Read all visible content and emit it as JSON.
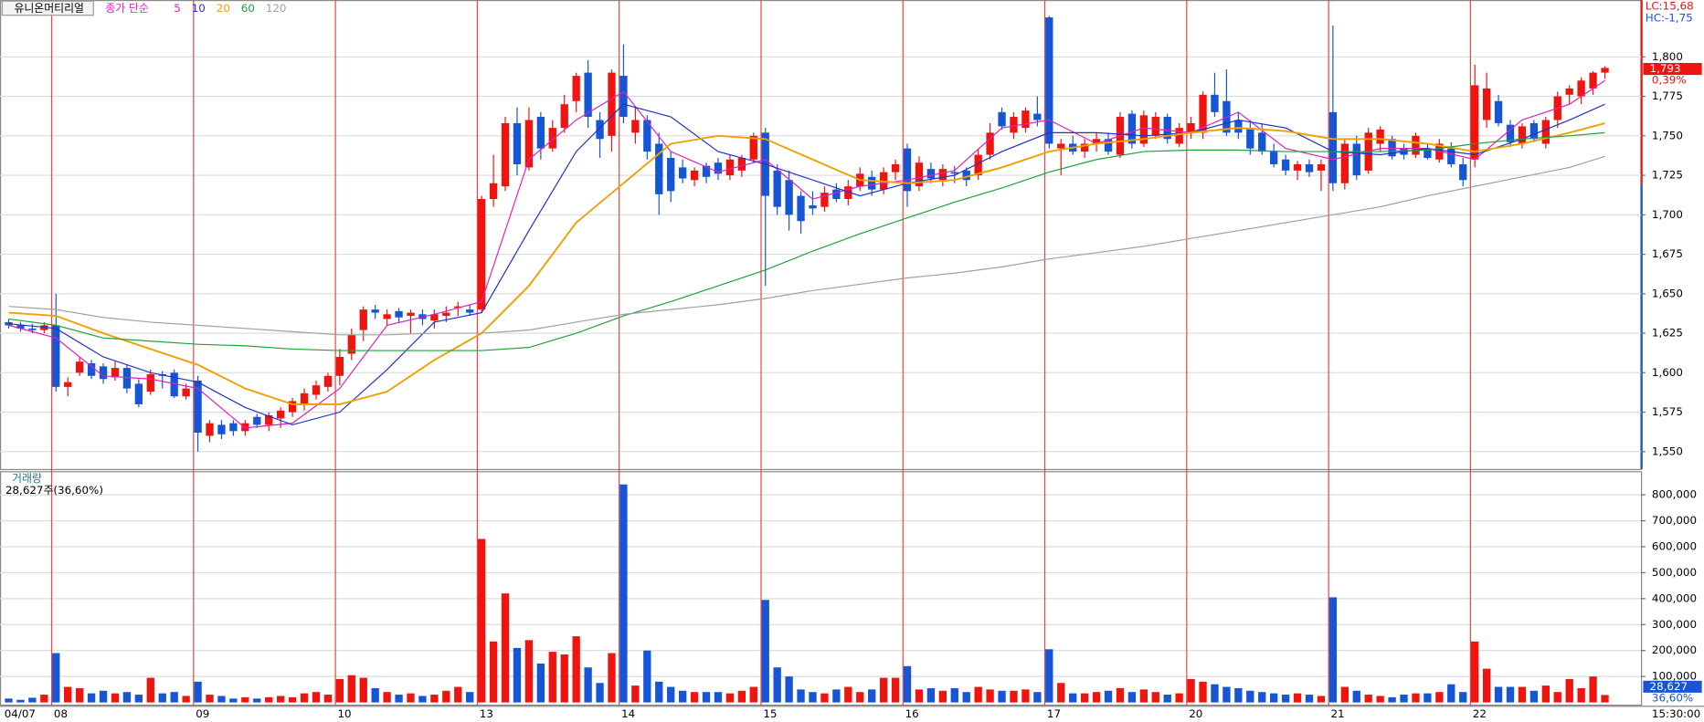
{
  "chart_data": {
    "type": "candlestick",
    "stock_name": "유니온머티리얼",
    "ma_title": "종가 단순",
    "categories": [
      "04/07",
      null,
      null,
      null,
      "08",
      null,
      null,
      null,
      null,
      null,
      null,
      null,
      null,
      null,
      null,
      null,
      "09",
      null,
      null,
      null,
      null,
      null,
      null,
      null,
      null,
      null,
      null,
      null,
      "10",
      null,
      null,
      null,
      null,
      null,
      null,
      null,
      null,
      null,
      null,
      null,
      "13",
      null,
      null,
      null,
      null,
      null,
      null,
      null,
      null,
      null,
      null,
      null,
      "14",
      null,
      null,
      null,
      null,
      null,
      null,
      null,
      null,
      null,
      null,
      null,
      "15",
      null,
      null,
      null,
      null,
      null,
      null,
      null,
      null,
      null,
      null,
      null,
      "16",
      null,
      null,
      null,
      null,
      null,
      null,
      null,
      null,
      null,
      null,
      null,
      "17",
      null,
      null,
      null,
      null,
      null,
      null,
      null,
      null,
      null,
      null,
      null,
      "20",
      null,
      null,
      null,
      null,
      null,
      null,
      null,
      null,
      null,
      null,
      null,
      "21",
      null,
      null,
      null,
      null,
      null,
      null,
      null,
      null,
      null,
      null,
      null,
      "22",
      null,
      null,
      null,
      null,
      null,
      null,
      null,
      null,
      null,
      null,
      null
    ],
    "ohlc": [
      [
        1632,
        1634,
        1628,
        1630
      ],
      [
        1630,
        1632,
        1626,
        1628
      ],
      [
        1628,
        1631,
        1625,
        1627
      ],
      [
        1627,
        1632,
        1625,
        1630
      ],
      [
        1630,
        1650,
        1588,
        1591
      ],
      [
        1591,
        1597,
        1585,
        1594
      ],
      [
        1600,
        1610,
        1598,
        1607
      ],
      [
        1606,
        1608,
        1596,
        1598
      ],
      [
        1604,
        1606,
        1593,
        1596
      ],
      [
        1597,
        1607,
        1595,
        1603
      ],
      [
        1603,
        1605,
        1587,
        1590
      ],
      [
        1593,
        1596,
        1578,
        1580
      ],
      [
        1588,
        1602,
        1586,
        1599
      ],
      [
        1599,
        1601,
        1590,
        1598
      ],
      [
        1600,
        1602,
        1584,
        1585
      ],
      [
        1585,
        1593,
        1583,
        1590
      ],
      [
        1595,
        1598,
        1550,
        1562
      ],
      [
        1560,
        1570,
        1556,
        1568
      ],
      [
        1567,
        1570,
        1558,
        1561
      ],
      [
        1568,
        1570,
        1560,
        1563
      ],
      [
        1563,
        1570,
        1560,
        1568
      ],
      [
        1572,
        1574,
        1565,
        1567
      ],
      [
        1567,
        1575,
        1563,
        1573
      ],
      [
        1571,
        1578,
        1565,
        1576
      ],
      [
        1575,
        1584,
        1572,
        1582
      ],
      [
        1580,
        1590,
        1576,
        1587
      ],
      [
        1586,
        1595,
        1583,
        1592
      ],
      [
        1591,
        1600,
        1588,
        1598
      ],
      [
        1598,
        1615,
        1592,
        1610
      ],
      [
        1612,
        1628,
        1608,
        1624
      ],
      [
        1627,
        1642,
        1620,
        1640
      ],
      [
        1640,
        1643,
        1634,
        1638
      ],
      [
        1634,
        1640,
        1630,
        1637
      ],
      [
        1639,
        1641,
        1632,
        1635
      ],
      [
        1636,
        1640,
        1625,
        1638
      ],
      [
        1637,
        1640,
        1630,
        1634
      ],
      [
        1633,
        1640,
        1628,
        1637
      ],
      [
        1636,
        1642,
        1632,
        1638
      ],
      [
        1641,
        1645,
        1636,
        1642
      ],
      [
        1640,
        1643,
        1636,
        1638
      ],
      [
        1640,
        1712,
        1638,
        1710
      ],
      [
        1710,
        1738,
        1705,
        1720
      ],
      [
        1718,
        1762,
        1715,
        1758
      ],
      [
        1758,
        1768,
        1725,
        1732
      ],
      [
        1730,
        1768,
        1728,
        1760
      ],
      [
        1762,
        1765,
        1735,
        1742
      ],
      [
        1742,
        1760,
        1740,
        1755
      ],
      [
        1755,
        1776,
        1752,
        1770
      ],
      [
        1772,
        1790,
        1765,
        1788
      ],
      [
        1790,
        1798,
        1755,
        1762
      ],
      [
        1760,
        1765,
        1736,
        1748
      ],
      [
        1750,
        1792,
        1740,
        1790
      ],
      [
        1788,
        1808,
        1758,
        1762
      ],
      [
        1752,
        1768,
        1745,
        1760
      ],
      [
        1760,
        1763,
        1735,
        1740
      ],
      [
        1745,
        1752,
        1700,
        1713
      ],
      [
        1736,
        1740,
        1708,
        1715
      ],
      [
        1730,
        1735,
        1720,
        1723
      ],
      [
        1722,
        1730,
        1718,
        1728
      ],
      [
        1731,
        1733,
        1720,
        1724
      ],
      [
        1733,
        1736,
        1722,
        1726
      ],
      [
        1725,
        1738,
        1722,
        1735
      ],
      [
        1728,
        1738,
        1724,
        1736
      ],
      [
        1735,
        1752,
        1733,
        1750
      ],
      [
        1752,
        1755,
        1655,
        1712
      ],
      [
        1728,
        1732,
        1700,
        1705
      ],
      [
        1722,
        1728,
        1690,
        1700
      ],
      [
        1712,
        1715,
        1688,
        1696
      ],
      [
        1706,
        1715,
        1700,
        1704
      ],
      [
        1705,
        1718,
        1702,
        1714
      ],
      [
        1716,
        1720,
        1708,
        1710
      ],
      [
        1710,
        1722,
        1706,
        1718
      ],
      [
        1718,
        1730,
        1715,
        1726
      ],
      [
        1724,
        1728,
        1712,
        1716
      ],
      [
        1716,
        1730,
        1713,
        1727
      ],
      [
        1727,
        1735,
        1722,
        1732
      ],
      [
        1742,
        1745,
        1705,
        1715
      ],
      [
        1718,
        1737,
        1715,
        1733
      ],
      [
        1729,
        1733,
        1720,
        1723
      ],
      [
        1722,
        1732,
        1718,
        1729
      ],
      [
        1727,
        1731,
        1720,
        1726
      ],
      [
        1728,
        1730,
        1718,
        1722
      ],
      [
        1725,
        1742,
        1722,
        1738
      ],
      [
        1738,
        1758,
        1735,
        1752
      ],
      [
        1765,
        1768,
        1754,
        1756
      ],
      [
        1752,
        1765,
        1748,
        1762
      ],
      [
        1755,
        1768,
        1752,
        1766
      ],
      [
        1764,
        1775,
        1756,
        1760
      ],
      [
        1825,
        1826,
        1742,
        1745
      ],
      [
        1742,
        1748,
        1725,
        1745
      ],
      [
        1745,
        1750,
        1738,
        1740
      ],
      [
        1740,
        1748,
        1736,
        1745
      ],
      [
        1745,
        1752,
        1740,
        1748
      ],
      [
        1748,
        1752,
        1738,
        1740
      ],
      [
        1738,
        1765,
        1736,
        1762
      ],
      [
        1764,
        1766,
        1742,
        1745
      ],
      [
        1745,
        1766,
        1743,
        1763
      ],
      [
        1750,
        1765,
        1748,
        1762
      ],
      [
        1762,
        1764,
        1745,
        1748
      ],
      [
        1745,
        1758,
        1743,
        1755
      ],
      [
        1752,
        1762,
        1748,
        1758
      ],
      [
        1752,
        1778,
        1748,
        1776
      ],
      [
        1776,
        1790,
        1762,
        1765
      ],
      [
        1772,
        1792,
        1750,
        1752
      ],
      [
        1760,
        1765,
        1748,
        1752
      ],
      [
        1755,
        1760,
        1738,
        1742
      ],
      [
        1752,
        1758,
        1738,
        1740
      ],
      [
        1740,
        1745,
        1730,
        1732
      ],
      [
        1735,
        1738,
        1725,
        1728
      ],
      [
        1728,
        1734,
        1722,
        1732
      ],
      [
        1732,
        1735,
        1724,
        1727
      ],
      [
        1728,
        1735,
        1715,
        1732
      ],
      [
        1765,
        1820,
        1715,
        1720
      ],
      [
        1720,
        1748,
        1716,
        1745
      ],
      [
        1745,
        1750,
        1722,
        1725
      ],
      [
        1728,
        1755,
        1726,
        1752
      ],
      [
        1745,
        1756,
        1740,
        1754
      ],
      [
        1748,
        1750,
        1735,
        1737
      ],
      [
        1742,
        1745,
        1735,
        1738
      ],
      [
        1738,
        1752,
        1736,
        1750
      ],
      [
        1742,
        1745,
        1735,
        1736
      ],
      [
        1735,
        1748,
        1733,
        1745
      ],
      [
        1742,
        1746,
        1730,
        1732
      ],
      [
        1732,
        1736,
        1718,
        1722
      ],
      [
        1735,
        1795,
        1730,
        1782
      ],
      [
        1760,
        1790,
        1755,
        1780
      ],
      [
        1772,
        1776,
        1756,
        1758
      ],
      [
        1757,
        1760,
        1743,
        1746
      ],
      [
        1745,
        1758,
        1742,
        1756
      ],
      [
        1758,
        1760,
        1746,
        1748
      ],
      [
        1745,
        1762,
        1742,
        1760
      ],
      [
        1760,
        1778,
        1755,
        1775
      ],
      [
        1776,
        1782,
        1770,
        1780
      ],
      [
        1775,
        1787,
        1770,
        1785
      ],
      [
        1780,
        1791,
        1776,
        1790
      ],
      [
        1790,
        1794,
        1786,
        1793
      ]
    ],
    "volume": [
      15000,
      10000,
      18000,
      30000,
      190000,
      60000,
      55000,
      35000,
      45000,
      35000,
      40000,
      30000,
      95000,
      35000,
      40000,
      25000,
      80000,
      30000,
      25000,
      15000,
      20000,
      15000,
      20000,
      25000,
      20000,
      35000,
      40000,
      30000,
      90000,
      105000,
      95000,
      55000,
      40000,
      30000,
      35000,
      25000,
      30000,
      45000,
      60000,
      40000,
      630000,
      235000,
      420000,
      210000,
      240000,
      150000,
      195000,
      185000,
      255000,
      135000,
      75000,
      190000,
      840000,
      65000,
      200000,
      80000,
      60000,
      45000,
      40000,
      40000,
      40000,
      35000,
      45000,
      60000,
      395000,
      135000,
      100000,
      50000,
      40000,
      35000,
      50000,
      60000,
      40000,
      50000,
      95000,
      95000,
      140000,
      50000,
      55000,
      45000,
      55000,
      40000,
      60000,
      50000,
      45000,
      45000,
      50000,
      40000,
      205000,
      75000,
      35000,
      35000,
      40000,
      45000,
      55000,
      40000,
      50000,
      40000,
      30000,
      35000,
      90000,
      80000,
      70000,
      60000,
      55000,
      45000,
      40000,
      35000,
      30000,
      35000,
      30000,
      25000,
      405000,
      60000,
      45000,
      30000,
      25000,
      20000,
      30000,
      35000,
      35000,
      40000,
      70000,
      40000,
      235000,
      130000,
      60000,
      60000,
      60000,
      45000,
      65000,
      40000,
      90000,
      55000,
      100000,
      28627
    ],
    "up_color": "#f0140f",
    "down_color": "#1555d6",
    "ma_x": [
      0,
      4,
      8,
      12,
      16,
      20,
      24,
      28,
      32,
      36,
      40,
      44,
      48,
      52,
      56,
      60,
      64,
      68,
      72,
      76,
      80,
      84,
      88,
      92,
      96,
      100,
      104,
      108,
      112,
      116,
      120,
      124,
      128,
      132,
      135
    ],
    "ma": [
      {
        "name": "5",
        "color": "#e020c0",
        "values": [
          1630,
          1622,
          1598,
          1596,
          1590,
          1565,
          1568,
          1590,
          1630,
          1637,
          1645,
          1735,
          1760,
          1778,
          1740,
          1727,
          1735,
          1710,
          1718,
          1722,
          1728,
          1755,
          1760,
          1745,
          1755,
          1752,
          1765,
          1742,
          1735,
          1742,
          1742,
          1735,
          1760,
          1770,
          1785
        ]
      },
      {
        "name": "10",
        "color": "#2030d0",
        "values": [
          1631,
          1628,
          1610,
          1600,
          1594,
          1578,
          1567,
          1575,
          1602,
          1632,
          1638,
          1690,
          1740,
          1770,
          1762,
          1740,
          1732,
          1722,
          1712,
          1720,
          1725,
          1740,
          1752,
          1752,
          1750,
          1752,
          1760,
          1755,
          1740,
          1738,
          1742,
          1738,
          1748,
          1760,
          1770
        ]
      },
      {
        "name": "20",
        "color": "#f0a000",
        "values": [
          1638,
          1636,
          1625,
          1615,
          1605,
          1590,
          1580,
          1580,
          1588,
          1608,
          1625,
          1655,
          1695,
          1720,
          1745,
          1750,
          1748,
          1735,
          1722,
          1720,
          1722,
          1730,
          1740,
          1745,
          1748,
          1752,
          1755,
          1753,
          1748,
          1748,
          1745,
          1740,
          1745,
          1752,
          1758
        ]
      },
      {
        "name": "60",
        "color": "#20a040",
        "values": [
          1634,
          1630,
          1622,
          1620,
          1618,
          1617,
          1615,
          1614,
          1614,
          1614,
          1614,
          1616,
          1625,
          1636,
          1645,
          1655,
          1665,
          1677,
          1688,
          1698,
          1708,
          1717,
          1727,
          1735,
          1740,
          1741,
          1741,
          1740,
          1740,
          1740,
          1741,
          1745,
          1748,
          1750,
          1752
        ]
      },
      {
        "name": "120",
        "color": "#a0a0a0",
        "values": [
          1642,
          1640,
          1635,
          1632,
          1630,
          1628,
          1626,
          1624,
          1624,
          1625,
          1625,
          1627,
          1632,
          1637,
          1640,
          1643,
          1647,
          1652,
          1656,
          1660,
          1663,
          1667,
          1672,
          1676,
          1680,
          1685,
          1690,
          1695,
          1700,
          1705,
          1712,
          1718,
          1724,
          1730,
          1737
        ]
      }
    ],
    "ylim": [
      1539,
      1836
    ],
    "yticks": [
      {
        "value": 1550,
        "label": "1,550"
      },
      {
        "value": 1575,
        "label": "1,575"
      },
      {
        "value": 1600,
        "label": "1,600"
      },
      {
        "value": 1625,
        "label": "1,625"
      },
      {
        "value": 1650,
        "label": "1,650"
      },
      {
        "value": 1675,
        "label": "1,675"
      },
      {
        "value": 1700,
        "label": "1,700"
      },
      {
        "value": 1725,
        "label": "1,725"
      },
      {
        "value": 1750,
        "label": "1,750"
      },
      {
        "value": 1775,
        "label": "1,775"
      },
      {
        "value": 1800,
        "label": "1,800"
      }
    ],
    "volume_title": "거래량",
    "volume_ylim": [
      0,
      866000
    ],
    "volume_ticks": [
      {
        "value": 100000,
        "label": "100,000"
      },
      {
        "value": 200000,
        "label": "200,000"
      },
      {
        "value": 300000,
        "label": "300,000"
      },
      {
        "value": 400000,
        "label": "400,000"
      },
      {
        "value": 500000,
        "label": "500,000"
      },
      {
        "value": 600000,
        "label": "600,000"
      },
      {
        "value": 700000,
        "label": "700,000"
      },
      {
        "value": 800000,
        "label": "800,000"
      }
    ],
    "grid": true,
    "annotations": {
      "lc": "LC:15,68",
      "hc": "HC:-1,75",
      "last_price": "1,793",
      "change": "0,39%",
      "volume_info": "28,627주(36,60%)",
      "last_volume": "28,627",
      "volume_ratio": "36,60%",
      "time": "15:30:00"
    }
  }
}
